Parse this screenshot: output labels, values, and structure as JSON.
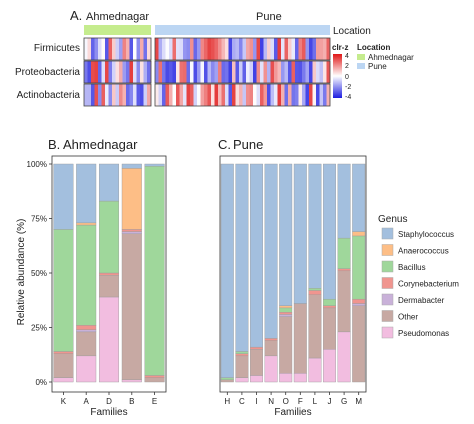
{
  "colors": {
    "loc_ahmednagar": "#c5ec8e",
    "loc_pune": "#bcd6f3",
    "clr_high": "#e01616",
    "clr_mid": "#ffffff",
    "clr_low": "#1c1ce0",
    "Staphylococcus": "#a3bfde",
    "Anaerococcus": "#fdbe86",
    "Bacillus": "#9fd79b",
    "Corynebacterium": "#f0958f",
    "Dermabacter": "#c9b1d9",
    "Other": "#c7a9a3",
    "Pseudomonas": "#f2bde0"
  },
  "panels": {
    "a_label": "A.",
    "b_label": "B.",
    "c_label": "C."
  },
  "chart_data": [
    {
      "type": "heatmap",
      "location_groups": [
        {
          "name": "Ahmednagar",
          "n_samples": 5
        },
        {
          "name": "Pune",
          "n_samples": 12
        }
      ],
      "location_label": "Location",
      "rows": [
        "Firmicutes",
        "Proteobacteria",
        "Actinobacteria"
      ],
      "color_scale": {
        "title": "clr-z",
        "ticks": [
          4,
          2,
          0,
          -2,
          -4
        ],
        "range": [
          -4,
          4
        ]
      },
      "legend": {
        "title": "Location",
        "entries": [
          "Ahmednagar",
          "Pune"
        ]
      }
    },
    {
      "type": "bar",
      "stacked": true,
      "title": "Ahmednagar",
      "xlabel": "Families",
      "ylabel": "Relative abundance (%)",
      "ylim": [
        0,
        100
      ],
      "yticks": [
        "0%",
        "25%",
        "50%",
        "75%",
        "100%"
      ],
      "categories": [
        "K",
        "A",
        "D",
        "B",
        "E"
      ],
      "series": [
        {
          "name": "Pseudomonas",
          "values": [
            2,
            12,
            39,
            1,
            0
          ]
        },
        {
          "name": "Other",
          "values": [
            11,
            11,
            10,
            67,
            2
          ]
        },
        {
          "name": "Dermabacter",
          "values": [
            0,
            1,
            0,
            1,
            0
          ]
        },
        {
          "name": "Corynebacterium",
          "values": [
            1,
            2,
            1,
            1,
            1
          ]
        },
        {
          "name": "Bacillus",
          "values": [
            56,
            46,
            33,
            0,
            96
          ]
        },
        {
          "name": "Anaerococcus",
          "values": [
            0,
            1,
            0,
            28,
            0
          ]
        },
        {
          "name": "Staphylococcus",
          "values": [
            30,
            27,
            17,
            2,
            1
          ]
        }
      ]
    },
    {
      "type": "bar",
      "stacked": true,
      "title": "Pune",
      "xlabel": "Families",
      "ylabel": "",
      "ylim": [
        0,
        100
      ],
      "categories": [
        "H",
        "C",
        "I",
        "N",
        "O",
        "F",
        "L",
        "J",
        "G",
        "M"
      ],
      "series": [
        {
          "name": "Pseudomonas",
          "values": [
            0,
            2,
            3,
            12,
            4,
            4,
            11,
            15,
            23,
            0
          ]
        },
        {
          "name": "Other",
          "values": [
            1,
            10,
            12,
            7,
            26,
            32,
            29,
            19,
            28,
            35
          ]
        },
        {
          "name": "Dermabacter",
          "values": [
            0,
            0,
            0,
            0,
            1,
            0,
            0,
            0,
            0,
            1
          ]
        },
        {
          "name": "Corynebacterium",
          "values": [
            0,
            1,
            1,
            1,
            1,
            0,
            2,
            1,
            1,
            2
          ]
        },
        {
          "name": "Bacillus",
          "values": [
            1,
            1,
            0,
            0,
            2,
            0,
            1,
            3,
            14,
            29
          ]
        },
        {
          "name": "Anaerococcus",
          "values": [
            0,
            0,
            0,
            0,
            1,
            0,
            0,
            0,
            0,
            2
          ]
        },
        {
          "name": "Staphylococcus",
          "values": [
            98,
            86,
            84,
            80,
            65,
            64,
            57,
            62,
            34,
            31
          ]
        }
      ]
    }
  ],
  "genus_legend": {
    "title": "Genus",
    "items": [
      "Staphylococcus",
      "Anaerococcus",
      "Bacillus",
      "Corynebacterium",
      "Dermabacter",
      "Other",
      "Pseudomonas"
    ]
  }
}
